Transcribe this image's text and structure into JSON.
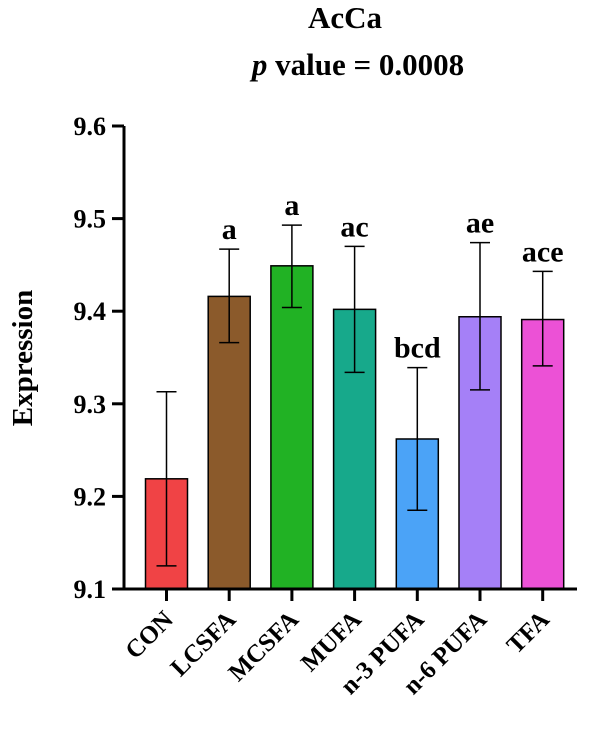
{
  "chart_data": {
    "type": "bar",
    "title": "AcCa",
    "subtitle_italic": "p",
    "subtitle_rest": " value = 0.0008",
    "xlabel": "",
    "ylabel": "Expression",
    "ylim": [
      9.1,
      9.6
    ],
    "yticks": [
      "9.1",
      "9.2",
      "9.3",
      "9.4",
      "9.5",
      "9.6"
    ],
    "grid": false,
    "categories": [
      "CON",
      "LCSFA",
      "MCSFA",
      "MUFA",
      "n-3 PUFA",
      "n-6 PUFA",
      "TFA"
    ],
    "values": [
      9.219,
      9.416,
      9.449,
      9.402,
      9.262,
      9.394,
      9.391
    ],
    "error_low": [
      9.125,
      9.366,
      9.404,
      9.334,
      9.185,
      9.315,
      9.341
    ],
    "error_high": [
      9.313,
      9.467,
      9.493,
      9.47,
      9.339,
      9.474,
      9.443
    ],
    "significance": [
      "",
      "a",
      "a",
      "ac",
      "bcd",
      "ae",
      "ace"
    ],
    "colors": [
      "#f04345",
      "#8b5a2b",
      "#21b224",
      "#17a98b",
      "#4ba3f7",
      "#a580f7",
      "#ec51d6"
    ]
  }
}
